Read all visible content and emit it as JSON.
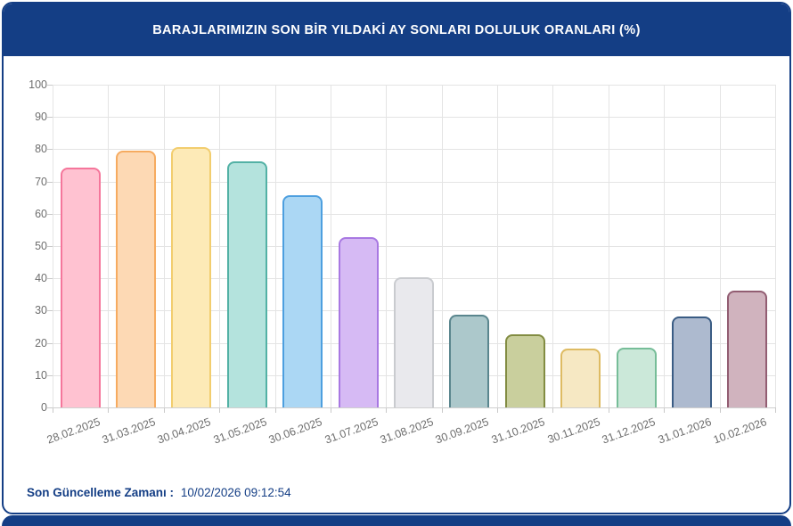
{
  "header": {
    "title": "BARAJLARIMIZIN SON BİR YILDAKİ AY SONLARI DOLULUK ORANLARI (%)"
  },
  "footer": {
    "label": "Son Güncelleme Zamanı :",
    "value": "10/02/2026 09:12:54"
  },
  "colors": {
    "navy": "#143e85",
    "grid": "#e4e4e4",
    "axis": "#cfcfcf",
    "tick_label": "#6e6e6e",
    "card_bg": "#ffffff"
  },
  "chart_data": {
    "type": "bar",
    "title": "BARAJLARIMIZIN SON BİR YILDAKİ AY SONLARI DOLULUK ORANLARI (%)",
    "xlabel": "",
    "ylabel": "",
    "ylim": [
      0,
      100
    ],
    "ytick_step": 10,
    "grid": true,
    "legend": "none",
    "x_label_rotation_deg": -20,
    "categories": [
      "28.02.2025",
      "31.03.2025",
      "30.04.2025",
      "31.05.2025",
      "30.06.2025",
      "31.07.2025",
      "31.08.2025",
      "30.09.2025",
      "31.10.2025",
      "30.11.2025",
      "31.12.2025",
      "31.01.2026",
      "10.02.2026"
    ],
    "values": [
      74.2,
      79.5,
      80.8,
      76.2,
      65.8,
      52.8,
      40.2,
      28.6,
      22.6,
      18.1,
      18.4,
      28.1,
      36.1
    ],
    "bar_styles": [
      {
        "fill": "#ffc2d1",
        "border": "#f5769b"
      },
      {
        "fill": "#fdd9b4",
        "border": "#f6ab60"
      },
      {
        "fill": "#fdeab7",
        "border": "#f2cd6e"
      },
      {
        "fill": "#b4e3dd",
        "border": "#52b1a5"
      },
      {
        "fill": "#abd7f4",
        "border": "#4d9fdf"
      },
      {
        "fill": "#d6baf4",
        "border": "#a878e2"
      },
      {
        "fill": "#e9e9ed",
        "border": "#c9cbcf"
      },
      {
        "fill": "#acc8cb",
        "border": "#5a868e"
      },
      {
        "fill": "#c9cf9d",
        "border": "#828c42"
      },
      {
        "fill": "#f6e8c3",
        "border": "#debb63"
      },
      {
        "fill": "#cbe8d9",
        "border": "#76bd98"
      },
      {
        "fill": "#adbacf",
        "border": "#3a5c84"
      },
      {
        "fill": "#d0b3be",
        "border": "#925d72"
      }
    ]
  }
}
